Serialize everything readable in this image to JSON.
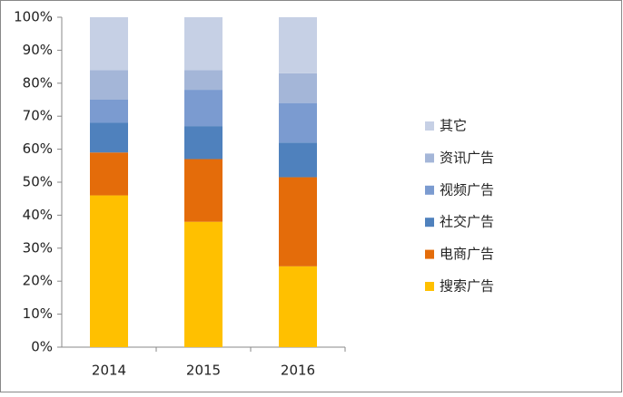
{
  "chart_data": {
    "type": "stacked_bar",
    "categories": [
      "2014",
      "2015",
      "2016"
    ],
    "series": [
      {
        "name": "搜索广告",
        "color": "#ffc000",
        "values": [
          46,
          38,
          24.5
        ]
      },
      {
        "name": "电商广告",
        "color": "#e46c0a",
        "values": [
          13,
          19,
          27
        ]
      },
      {
        "name": "社交广告",
        "color": "#4f81bd",
        "values": [
          9,
          10,
          10.5
        ]
      },
      {
        "name": "视频广告",
        "color": "#7b9bd0",
        "values": [
          7,
          11,
          12
        ]
      },
      {
        "name": "资讯广告",
        "color": "#a4b6d8",
        "values": [
          9,
          6,
          9
        ]
      },
      {
        "name": "其它",
        "color": "#c6d0e5",
        "values": [
          16,
          16,
          17
        ]
      }
    ],
    "ylim": [
      0,
      100
    ],
    "yticks": [
      {
        "value": 0,
        "label": "0%"
      },
      {
        "value": 10,
        "label": "10%"
      },
      {
        "value": 20,
        "label": "20%"
      },
      {
        "value": 30,
        "label": "30%"
      },
      {
        "value": 40,
        "label": "40%"
      },
      {
        "value": 50,
        "label": "50%"
      },
      {
        "value": 60,
        "label": "60%"
      },
      {
        "value": 70,
        "label": "70%"
      },
      {
        "value": 80,
        "label": "80%"
      },
      {
        "value": 90,
        "label": "90%"
      },
      {
        "value": 100,
        "label": "100%"
      }
    ],
    "legend": "right"
  }
}
